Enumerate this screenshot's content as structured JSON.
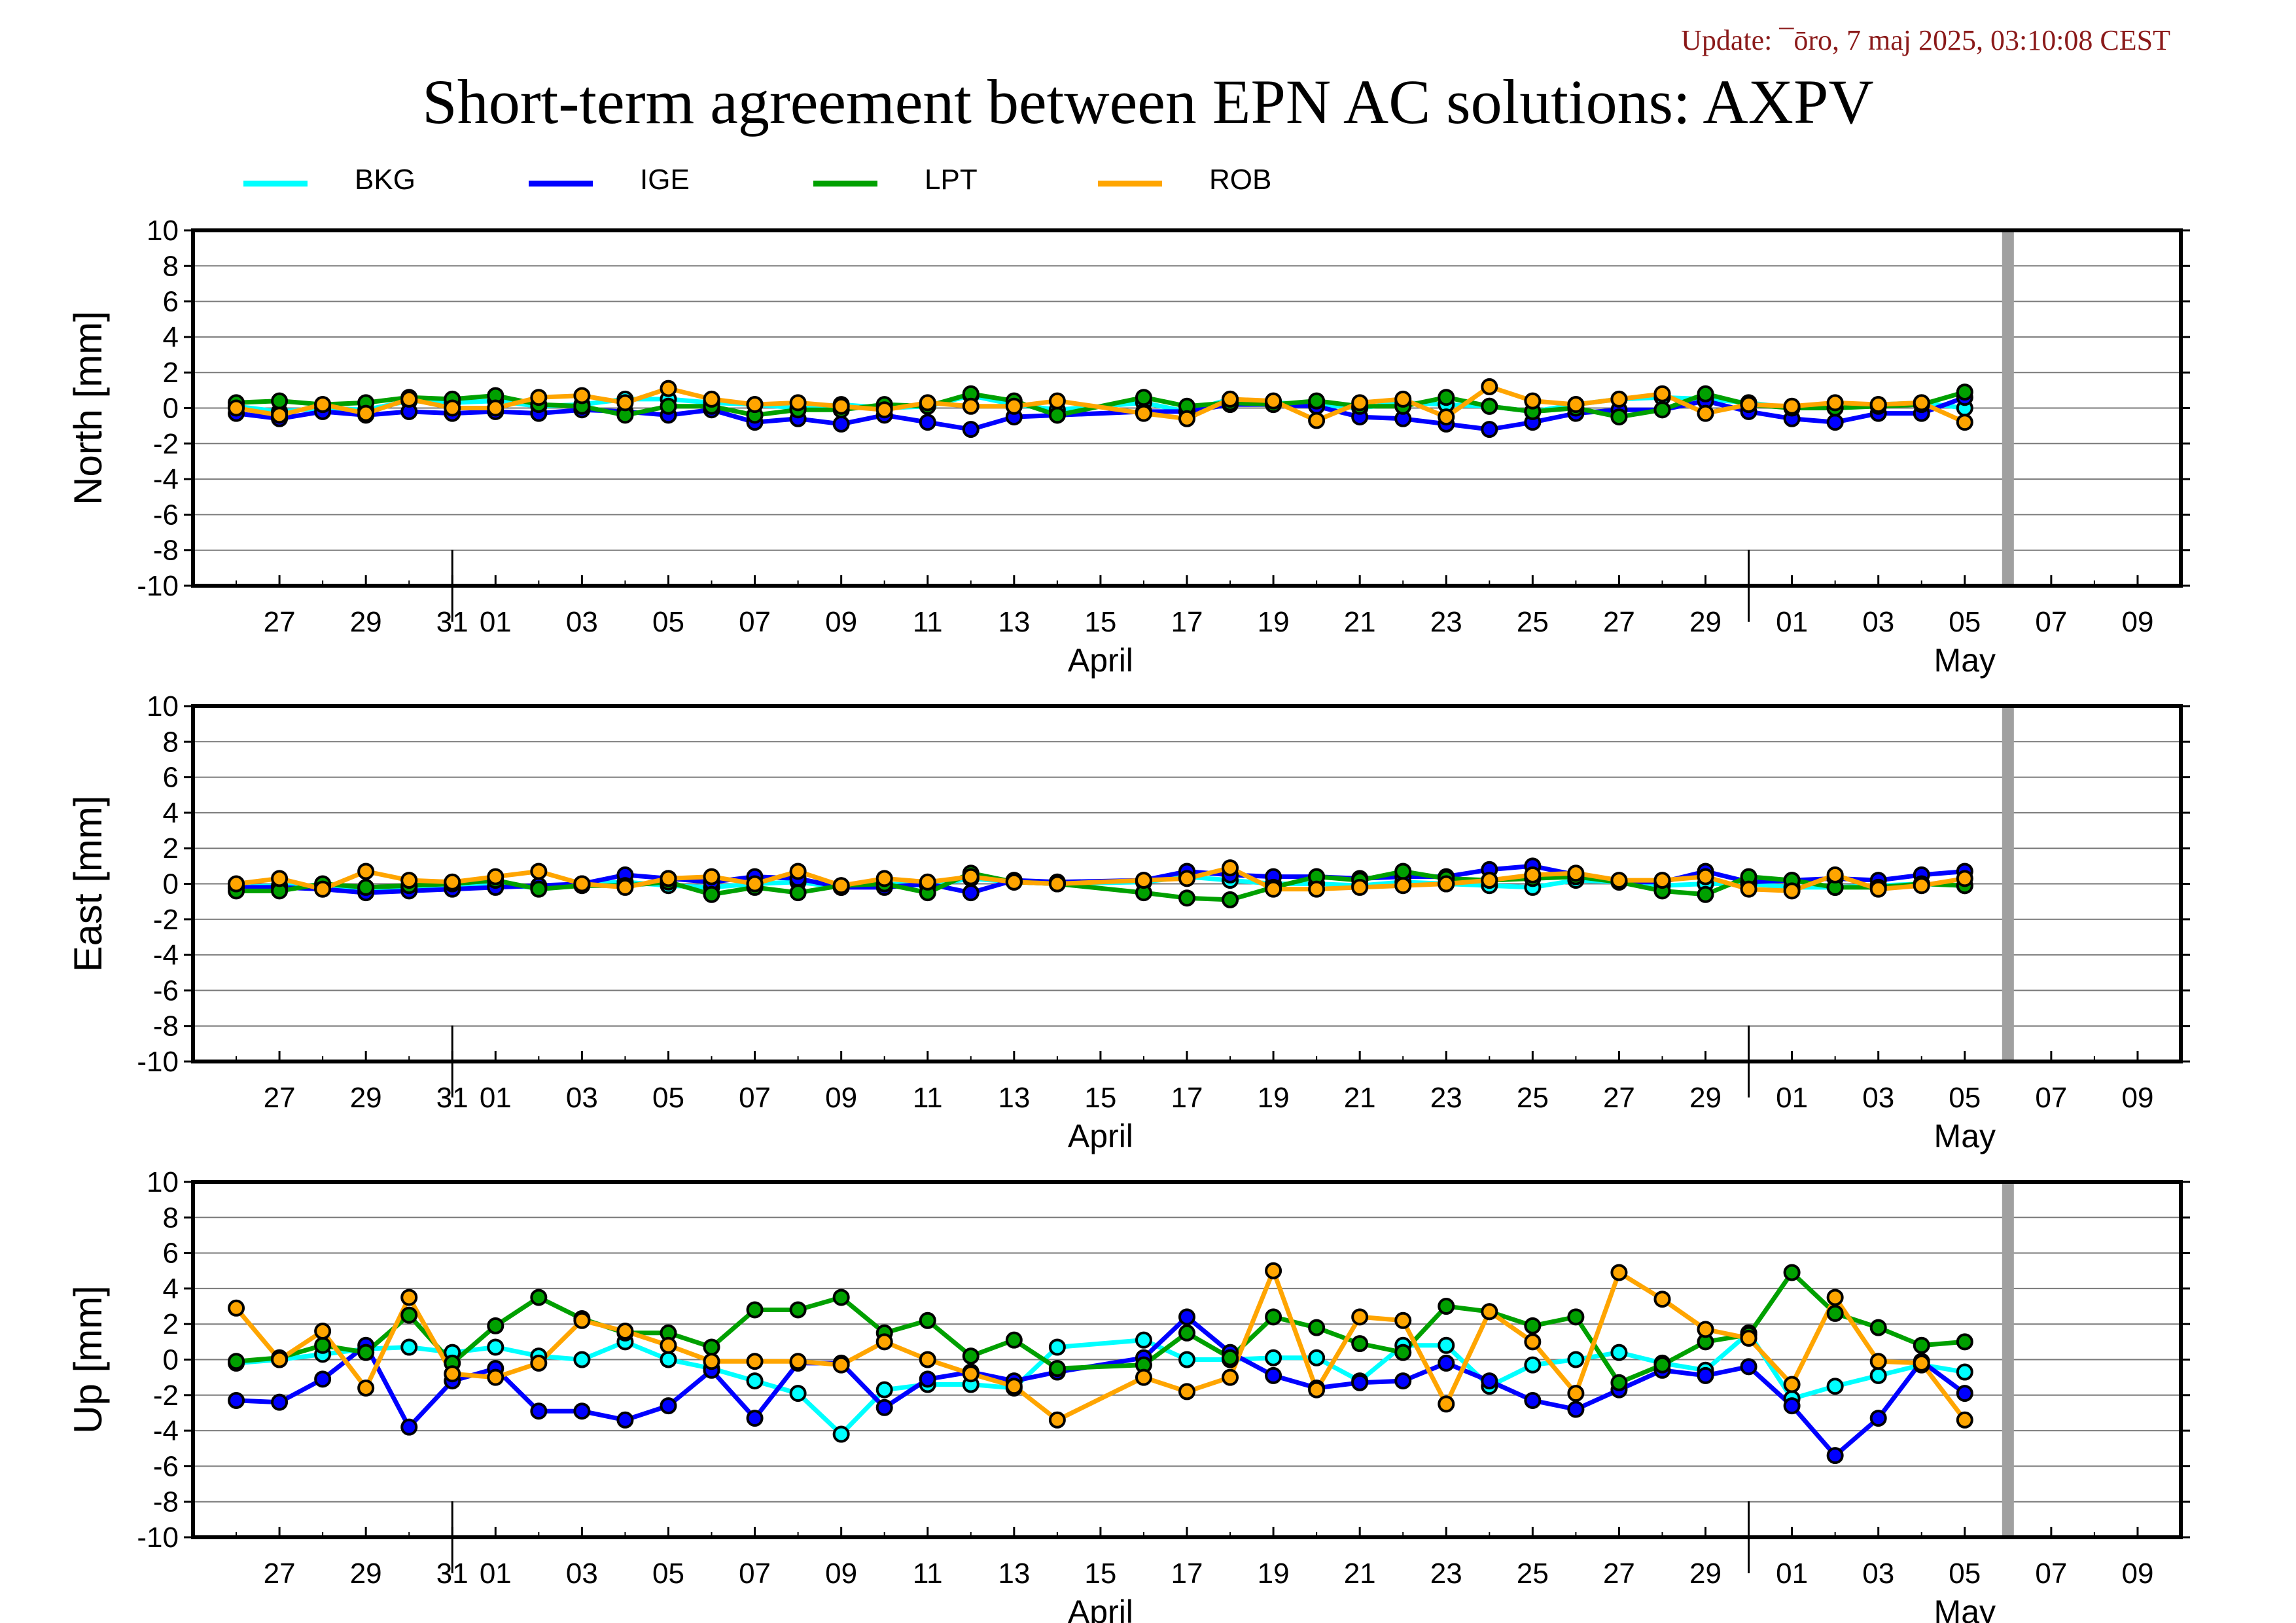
{
  "update_text": "Update: ¯ōro, 7 maj 2025, 03:10:08 CEST",
  "chart_data": {
    "type": "line",
    "title": "Short-term agreement between EPN AC solutions: AXPV",
    "legend_position": "top",
    "grid": true,
    "series_info": [
      {
        "name": "BKG",
        "color": "#00ffff"
      },
      {
        "name": "IGE",
        "color": "#0000ff"
      },
      {
        "name": "LPT",
        "color": "#00a000"
      },
      {
        "name": "ROB",
        "color": "#ffa500"
      }
    ],
    "x_range": [
      "2025-03-25",
      "2025-05-10"
    ],
    "x_tick_labels": [
      "27",
      "29",
      "31",
      "01",
      "03",
      "05",
      "07",
      "09",
      "11",
      "13",
      "15",
      "17",
      "19",
      "21",
      "23",
      "25",
      "27",
      "29",
      "01",
      "03",
      "05",
      "07",
      "09"
    ],
    "x_tick_dates": [
      "2025-03-27",
      "2025-03-29",
      "2025-03-31",
      "2025-04-01",
      "2025-04-03",
      "2025-04-05",
      "2025-04-07",
      "2025-04-09",
      "2025-04-11",
      "2025-04-13",
      "2025-04-15",
      "2025-04-17",
      "2025-04-19",
      "2025-04-21",
      "2025-04-23",
      "2025-04-25",
      "2025-04-27",
      "2025-04-29",
      "2025-05-01",
      "2025-05-03",
      "2025-05-05",
      "2025-05-07",
      "2025-05-09"
    ],
    "month_labels": [
      {
        "text": "April",
        "date": "2025-04-15"
      },
      {
        "text": "May",
        "date": "2025-05-05"
      }
    ],
    "month_boundaries": [
      "2025-03-31",
      "2025-04-30"
    ],
    "marker_date": "2025-05-06",
    "y_ticks": [
      10,
      8,
      6,
      4,
      2,
      0,
      -2,
      -4,
      -6,
      -8,
      -10
    ],
    "dates": [
      "2025-03-26",
      "2025-03-27",
      "2025-03-28",
      "2025-03-29",
      "2025-03-30",
      "2025-03-31",
      "2025-04-01",
      "2025-04-02",
      "2025-04-03",
      "2025-04-04",
      "2025-04-05",
      "2025-04-06",
      "2025-04-07",
      "2025-04-08",
      "2025-04-09",
      "2025-04-10",
      "2025-04-11",
      "2025-04-12",
      "2025-04-13",
      "2025-04-14",
      "2025-04-16",
      "2025-04-17",
      "2025-04-18",
      "2025-04-19",
      "2025-04-20",
      "2025-04-21",
      "2025-04-22",
      "2025-04-23",
      "2025-04-24",
      "2025-04-25",
      "2025-04-26",
      "2025-04-27",
      "2025-04-28",
      "2025-04-29",
      "2025-04-30",
      "2025-05-01",
      "2025-05-02",
      "2025-05-03",
      "2025-05-04",
      "2025-05-05"
    ],
    "panels": [
      {
        "ylabel": "North [mm]",
        "ylim": [
          -10,
          10
        ],
        "series": [
          {
            "name": "BKG",
            "values": [
              0.1,
              -0.2,
              0.0,
              -0.1,
              0.4,
              0.3,
              0.4,
              0.1,
              0.2,
              0.5,
              0.5,
              0.3,
              0.2,
              0.0,
              0.2,
              0.0,
              0.1,
              0.7,
              0.2,
              -0.1,
              0.3,
              -0.2,
              0.5,
              0.3,
              0.2,
              0.0,
              0.3,
              0.2,
              0.1,
              -0.2,
              0.2,
              0.5,
              0.6,
              0.5,
              0.3,
              0.0,
              0.0,
              0.2,
              0.3,
              0.0
            ]
          },
          {
            "name": "IGE",
            "values": [
              -0.3,
              -0.6,
              -0.2,
              -0.4,
              -0.2,
              -0.3,
              -0.2,
              -0.3,
              -0.1,
              -0.2,
              -0.4,
              -0.1,
              -0.8,
              -0.6,
              -0.9,
              -0.4,
              -0.8,
              -1.2,
              -0.5,
              -0.4,
              -0.2,
              -0.2,
              0.2,
              0.2,
              0.1,
              -0.5,
              -0.6,
              -0.9,
              -1.2,
              -0.8,
              -0.3,
              -0.1,
              -0.1,
              0.4,
              -0.2,
              -0.6,
              -0.8,
              -0.3,
              -0.3,
              0.6
            ]
          },
          {
            "name": "LPT",
            "values": [
              0.3,
              0.4,
              0.2,
              0.3,
              0.6,
              0.5,
              0.7,
              0.2,
              0.1,
              -0.4,
              0.1,
              0.1,
              -0.4,
              -0.1,
              -0.1,
              0.2,
              0.1,
              0.8,
              0.4,
              -0.4,
              0.6,
              0.1,
              0.3,
              0.2,
              0.4,
              0.1,
              0.1,
              0.6,
              0.1,
              -0.2,
              0.0,
              -0.5,
              -0.1,
              0.8,
              0.2,
              0.0,
              0.0,
              0.1,
              0.2,
              0.9
            ]
          },
          {
            "name": "ROB",
            "values": [
              0.0,
              -0.4,
              0.2,
              -0.3,
              0.5,
              0.0,
              0.0,
              0.6,
              0.7,
              0.3,
              1.1,
              0.5,
              0.2,
              0.3,
              0.1,
              -0.1,
              0.3,
              0.1,
              0.1,
              0.4,
              -0.3,
              -0.6,
              0.5,
              0.4,
              -0.7,
              0.3,
              0.5,
              -0.5,
              1.2,
              0.4,
              0.2,
              0.5,
              0.8,
              -0.3,
              0.2,
              0.1,
              0.3,
              0.2,
              0.3,
              -0.8
            ]
          }
        ]
      },
      {
        "ylabel": "East [mm]",
        "ylim": [
          -10,
          10
        ],
        "series": [
          {
            "name": "BKG",
            "values": [
              -0.2,
              -0.1,
              -0.1,
              -0.3,
              -0.2,
              -0.2,
              -0.1,
              -0.2,
              0.0,
              0.1,
              -0.1,
              -0.2,
              0.0,
              0.1,
              -0.2,
              0.0,
              -0.1,
              0.3,
              0.1,
              0.0,
              0.1,
              0.4,
              0.2,
              0.0,
              0.0,
              -0.1,
              0.1,
              0.0,
              -0.1,
              -0.2,
              0.2,
              0.1,
              -0.1,
              0.0,
              0.0,
              -0.2,
              -0.2,
              -0.1,
              0.0,
              -0.1
            ]
          },
          {
            "name": "IGE",
            "values": [
              -0.2,
              -0.2,
              -0.3,
              -0.5,
              -0.4,
              -0.3,
              -0.2,
              -0.1,
              0.0,
              0.5,
              0.3,
              0.1,
              0.4,
              0.3,
              -0.2,
              -0.2,
              0.0,
              -0.5,
              0.2,
              0.1,
              0.2,
              0.7,
              0.5,
              0.4,
              0.4,
              0.3,
              0.4,
              0.4,
              0.8,
              1.0,
              0.5,
              0.1,
              0.1,
              0.7,
              0.1,
              0.2,
              0.3,
              0.2,
              0.5,
              0.7
            ]
          },
          {
            "name": "LPT",
            "values": [
              -0.4,
              -0.4,
              0.0,
              -0.2,
              -0.1,
              0.0,
              0.2,
              -0.3,
              -0.1,
              -0.1,
              0.1,
              -0.6,
              -0.2,
              -0.5,
              -0.1,
              0.0,
              -0.5,
              0.6,
              0.1,
              0.0,
              -0.5,
              -0.8,
              -0.9,
              -0.2,
              0.4,
              0.2,
              0.7,
              0.3,
              0.2,
              0.3,
              0.4,
              0.1,
              -0.4,
              -0.6,
              0.4,
              0.2,
              -0.2,
              -0.2,
              0.0,
              -0.1
            ]
          },
          {
            "name": "ROB",
            "values": [
              0.0,
              0.3,
              -0.3,
              0.7,
              0.2,
              0.1,
              0.4,
              0.7,
              0.0,
              -0.2,
              0.3,
              0.4,
              0.0,
              0.7,
              -0.1,
              0.3,
              0.1,
              0.4,
              0.1,
              0.0,
              0.2,
              0.3,
              0.9,
              -0.3,
              -0.3,
              -0.2,
              -0.1,
              0.0,
              0.2,
              0.5,
              0.6,
              0.2,
              0.2,
              0.4,
              -0.3,
              -0.4,
              0.5,
              -0.3,
              -0.1,
              0.3
            ]
          }
        ]
      },
      {
        "ylabel": "Up [mm]",
        "ylim": [
          -10,
          10
        ],
        "series": [
          {
            "name": "BKG",
            "values": [
              -0.2,
              0.0,
              0.3,
              0.6,
              0.7,
              0.4,
              0.7,
              0.2,
              0.0,
              1.0,
              0.0,
              -0.5,
              -1.2,
              -1.9,
              -4.2,
              -1.7,
              -1.4,
              -1.4,
              -1.6,
              0.7,
              1.1,
              0.0,
              0.0,
              0.1,
              0.1,
              -1.2,
              0.8,
              0.8,
              -1.5,
              -0.3,
              0.0,
              0.4,
              -0.2,
              -0.6,
              1.5,
              -2.2,
              -1.5,
              -0.9,
              -0.3,
              -0.7
            ]
          },
          {
            "name": "IGE",
            "values": [
              -2.3,
              -2.4,
              -1.1,
              0.8,
              -3.8,
              -1.2,
              -0.5,
              -2.9,
              -2.9,
              -3.4,
              -2.6,
              -0.6,
              -3.3,
              -0.2,
              -0.2,
              -2.7,
              -1.1,
              -0.7,
              -1.2,
              -0.7,
              0.1,
              2.4,
              0.4,
              -0.9,
              -1.6,
              -1.3,
              -1.2,
              -0.2,
              -1.2,
              -2.3,
              -2.8,
              -1.7,
              -0.6,
              -0.9,
              -0.4,
              -2.6,
              -5.4,
              -3.3,
              -0.1,
              -1.9
            ]
          },
          {
            "name": "LPT",
            "values": [
              -0.1,
              0.1,
              0.8,
              0.4,
              2.5,
              -0.2,
              1.9,
              3.5,
              2.3,
              1.5,
              1.5,
              0.7,
              2.8,
              2.8,
              3.5,
              1.5,
              2.2,
              0.2,
              1.1,
              -0.5,
              -0.3,
              1.5,
              0.1,
              2.4,
              1.8,
              0.9,
              0.4,
              3.0,
              2.7,
              1.9,
              2.4,
              -1.3,
              -0.3,
              1.0,
              1.4,
              4.9,
              2.6,
              1.8,
              0.8,
              1.0
            ]
          },
          {
            "name": "ROB",
            "values": [
              2.9,
              0.0,
              1.6,
              -1.6,
              3.5,
              -0.8,
              -1.0,
              -0.2,
              2.2,
              1.6,
              0.8,
              -0.1,
              -0.1,
              -0.1,
              -0.3,
              1.0,
              0.0,
              -0.8,
              -1.5,
              -3.4,
              -1.0,
              -1.8,
              -1.0,
              5.0,
              -1.7,
              2.4,
              2.2,
              -2.5,
              2.7,
              1.0,
              -1.9,
              4.9,
              3.4,
              1.7,
              1.2,
              -1.4,
              3.5,
              -0.1,
              -0.2,
              -3.4
            ]
          }
        ]
      }
    ]
  }
}
